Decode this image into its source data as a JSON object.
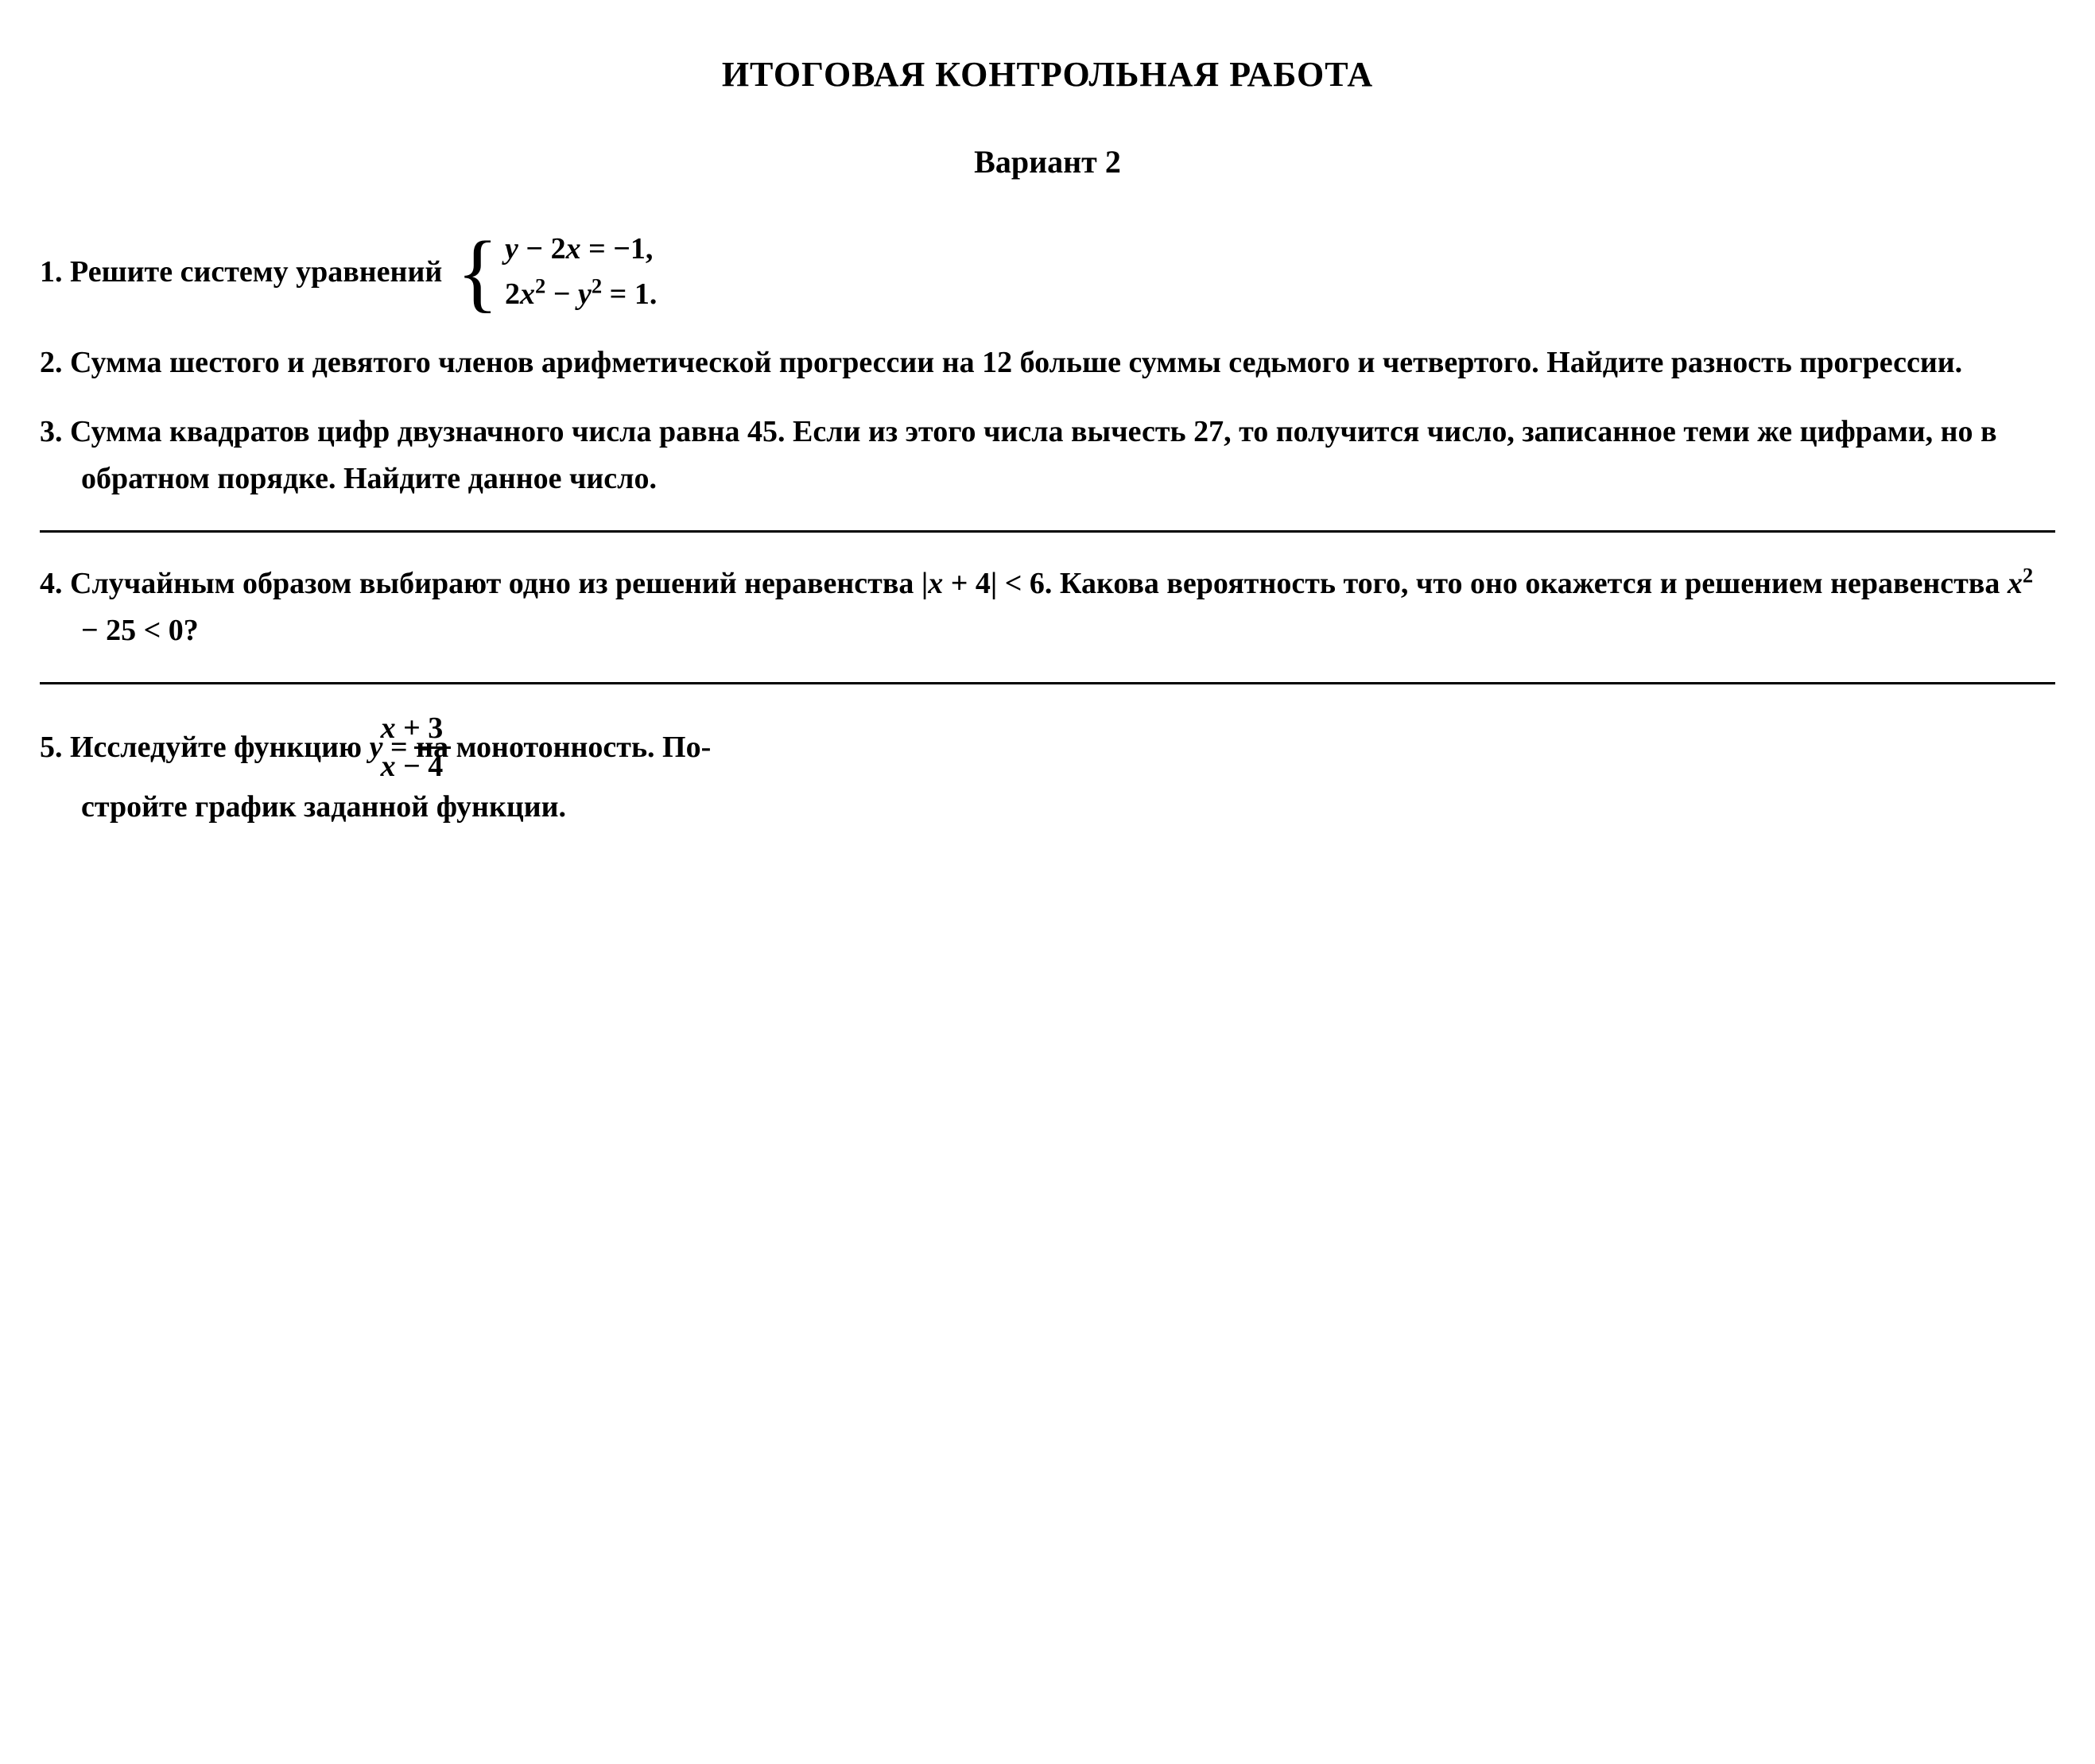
{
  "title": "ИТОГОВАЯ КОНТРОЛЬНАЯ РАБОТА",
  "subtitle": "Вариант 2",
  "problems": {
    "p1": {
      "num": "1.",
      "text": "Решите систему уравнений",
      "eq1_lhs_var1": "y",
      "eq1_minus": " − 2",
      "eq1_var2": "x",
      "eq1_rhs": " = −1,",
      "eq2_coef": "2",
      "eq2_var1": "x",
      "eq2_sup1": "2",
      "eq2_minus": " − ",
      "eq2_var2": "y",
      "eq2_sup2": "2",
      "eq2_rhs": " = 1."
    },
    "p2": {
      "num": "2.",
      "text": "Сумма шестого и девятого членов арифметической прогрессии на 12 больше суммы седьмого и четвертого. Найдите разность прогрессии."
    },
    "p3": {
      "num": "3.",
      "text": "Сумма квадратов цифр двузначного числа равна 45. Если из этого числа вычесть 27, то получится число, записанное теми же цифрами, но в обратном порядке. Найдите данное число."
    },
    "p4": {
      "num": "4.",
      "text_a": "Случайным образом выбирают одно из решений неравенства |",
      "var1": "x",
      "text_b": " + 4| < 6. Какова вероятность того, что оно окажется и решением неравенства ",
      "var2": "x",
      "sup2": "2",
      "text_c": " − 25 < 0?"
    },
    "p5": {
      "num": "5.",
      "text_a": "Исследуйте функцию ",
      "var_y": "y",
      "equals": " = ",
      "frac_num_var": "x",
      "frac_num_rest": " + 3",
      "frac_den_var": "x",
      "frac_den_rest": " − 4",
      "text_b": " на монотонность. По-",
      "text_c": "стройте график заданной функции."
    }
  },
  "style": {
    "background_color": "#ffffff",
    "text_color": "#000000",
    "body_fontsize": 38,
    "title_fontsize": 44,
    "subtitle_fontsize": 40,
    "font_family": "Georgia, Times New Roman, serif",
    "divider_color": "#000000",
    "divider_thickness": 3,
    "line_height": 1.55
  }
}
